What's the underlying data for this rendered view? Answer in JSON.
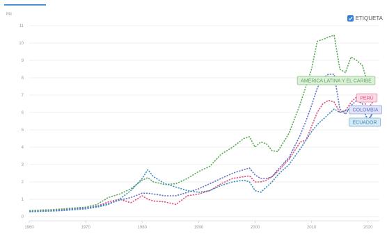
{
  "legend_toggle": {
    "label": "ETIQUETA",
    "checked": true
  },
  "chart_data": {
    "type": "line",
    "ylabel": "Mil",
    "xlim": [
      1960,
      2022
    ],
    "ylim": [
      0,
      11
    ],
    "x_ticks": [
      1960,
      1970,
      1980,
      1990,
      2000,
      2010,
      2020
    ],
    "y_ticks": [
      0,
      1,
      2,
      3,
      4,
      5,
      6,
      7,
      8,
      9,
      10,
      11
    ],
    "grid": true,
    "x": [
      1960,
      1962,
      1964,
      1966,
      1968,
      1970,
      1972,
      1974,
      1976,
      1978,
      1980,
      1981,
      1982,
      1984,
      1986,
      1988,
      1990,
      1992,
      1994,
      1996,
      1998,
      1999,
      2000,
      2001,
      2002,
      2003,
      2004,
      2006,
      2008,
      2009,
      2010,
      2011,
      2012,
      2013,
      2014,
      2015,
      2016,
      2017,
      2018,
      2019,
      2020,
      2021
    ],
    "series": [
      {
        "name": "AMÉRICA LATINA Y EL CARIBE",
        "color": "#5faa5a",
        "label_fill": "#dcefd9",
        "label_stroke": "#8cc487",
        "values": [
          0.35,
          0.38,
          0.4,
          0.45,
          0.5,
          0.55,
          0.7,
          1.1,
          1.3,
          1.6,
          2.1,
          2.25,
          2.0,
          1.85,
          1.9,
          2.2,
          2.6,
          2.9,
          3.6,
          4.0,
          4.5,
          4.6,
          4.0,
          4.3,
          4.2,
          3.8,
          3.75,
          4.8,
          6.5,
          7.5,
          8.5,
          10.1,
          10.2,
          10.35,
          10.45,
          8.5,
          8.3,
          9.2,
          9.0,
          8.7,
          7.6,
          8.1
        ]
      },
      {
        "name": "PERÚ",
        "color": "#e0507c",
        "label_fill": "#fbdde7",
        "label_stroke": "#e889a8",
        "values": [
          0.3,
          0.32,
          0.35,
          0.4,
          0.45,
          0.5,
          0.6,
          0.85,
          1.0,
          0.8,
          1.2,
          1.0,
          0.9,
          0.85,
          0.7,
          1.2,
          1.3,
          1.5,
          1.9,
          2.2,
          2.3,
          2.35,
          2.0,
          2.0,
          2.1,
          2.3,
          2.6,
          3.3,
          4.3,
          4.4,
          5.2,
          6.0,
          6.5,
          6.7,
          6.6,
          6.0,
          6.1,
          6.6,
          6.9,
          6.8,
          6.2,
          6.7
        ]
      },
      {
        "name": "COLOMBIA",
        "color": "#6672c8",
        "label_fill": "#e1e4f6",
        "label_stroke": "#98a0dc",
        "values": [
          0.3,
          0.32,
          0.35,
          0.38,
          0.45,
          0.5,
          0.6,
          0.75,
          0.95,
          1.1,
          1.35,
          1.35,
          1.3,
          1.2,
          1.2,
          1.4,
          1.6,
          1.9,
          2.2,
          2.5,
          2.7,
          2.8,
          2.4,
          2.2,
          2.2,
          2.3,
          2.7,
          3.4,
          4.7,
          5.5,
          6.4,
          7.4,
          8.0,
          8.2,
          8.2,
          6.2,
          5.9,
          6.4,
          6.7,
          6.5,
          5.4,
          6.2
        ]
      },
      {
        "name": "ECUADOR",
        "color": "#3f8fbf",
        "label_fill": "#d6e8f3",
        "label_stroke": "#7fb4d6",
        "values": [
          0.28,
          0.3,
          0.32,
          0.35,
          0.4,
          0.45,
          0.55,
          0.7,
          1.0,
          1.5,
          2.2,
          2.7,
          2.3,
          1.9,
          1.7,
          1.5,
          1.4,
          1.5,
          1.8,
          2.0,
          2.1,
          2.0,
          1.5,
          1.4,
          1.7,
          2.0,
          2.4,
          3.0,
          3.9,
          4.4,
          4.9,
          5.3,
          5.6,
          5.9,
          6.2,
          6.0,
          6.1,
          6.2,
          6.3,
          6.2,
          5.6,
          6.0
        ]
      }
    ]
  }
}
